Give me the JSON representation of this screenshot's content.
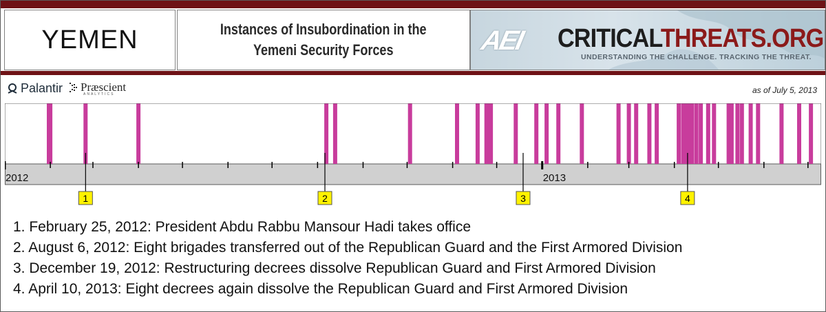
{
  "header": {
    "country": "YEMEN",
    "title_line1": "Instances of Insubordination in the",
    "title_line2": "Yemeni Security Forces",
    "brand_mark": "AEI",
    "brand_name_part1": "CRITICAL",
    "brand_name_part2": "THREATS.ORG",
    "brand_tagline": "UNDERSTANDING THE CHALLENGE.  TRACKING THE THREAT."
  },
  "logos": {
    "palantir": "Palantir",
    "prescient": "Præscient",
    "prescient_sub": "ANALYTICS"
  },
  "as_of": "as of July 5, 2013",
  "colors": {
    "accent_bar": "#6e1216",
    "event_bar": "#c83c9c",
    "axis_band": "#d0d0d0",
    "marker_fill": "#fff200"
  },
  "chart_data": {
    "type": "bar",
    "description_type": "event timeline",
    "x_range": [
      "2012-01-01",
      "2013-07-10"
    ],
    "year_labels": [
      "2012",
      "2013"
    ],
    "events": [
      "2012-01-31",
      "2012-02-01",
      "2012-02-25",
      "2012-04-01",
      "2012-08-07",
      "2012-08-13",
      "2012-10-03",
      "2012-11-04",
      "2012-11-18",
      "2012-11-24",
      "2012-11-25",
      "2012-11-26",
      "2012-11-27",
      "2012-12-14",
      "2012-12-28",
      "2013-01-04",
      "2013-01-12",
      "2013-01-28",
      "2013-02-22",
      "2013-03-01",
      "2013-03-06",
      "2013-03-15",
      "2013-03-20",
      "2013-04-04",
      "2013-04-07",
      "2013-04-09",
      "2013-04-11",
      "2013-04-13",
      "2013-04-16",
      "2013-04-19",
      "2013-04-24",
      "2013-04-28",
      "2013-05-08",
      "2013-05-10",
      "2013-05-14",
      "2013-05-17",
      "2013-05-23",
      "2013-05-28",
      "2013-06-13",
      "2013-06-25",
      "2013-07-03"
    ],
    "markers": [
      {
        "id": "1",
        "date": "2012-02-25"
      },
      {
        "id": "2",
        "date": "2012-08-06"
      },
      {
        "id": "3",
        "date": "2012-12-19"
      },
      {
        "id": "4",
        "date": "2013-04-10"
      }
    ],
    "notes": [
      "1. February 25, 2012: President Abdu Rabbu Mansour Hadi takes office",
      "2. August 6, 2012: Eight brigades transferred out of the Republican Guard and the First Armored Division",
      "3. December 19, 2012: Restructuring decrees dissolve Republican Guard and First Armored Division",
      "4. April 10, 2013: Eight decrees again dissolve the Republican Guard and First Armored Division"
    ]
  }
}
